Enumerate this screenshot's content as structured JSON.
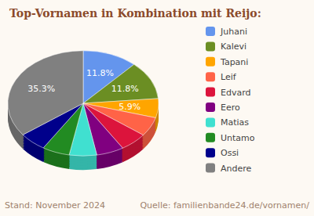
{
  "chart_data": {
    "type": "pie",
    "title": "Top-Vornamen in Kombination mit Reijo:",
    "categories": [
      "Juhani",
      "Kalevi",
      "Tapani",
      "Leif",
      "Edvard",
      "Eero",
      "Matias",
      "Untamo",
      "Ossi",
      "Andere"
    ],
    "values": [
      11.8,
      11.8,
      5.9,
      5.9,
      5.9,
      5.9,
      5.9,
      5.9,
      5.9,
      35.3
    ],
    "value_labels": [
      "11.8%",
      "11.8%",
      "5.9%",
      null,
      null,
      null,
      null,
      null,
      null,
      "35.3%"
    ],
    "data_labels": true,
    "colors": [
      "#6495ed",
      "#6b8e23",
      "#ffa500",
      "#ff6347",
      "#dc143c",
      "#800080",
      "#40e0d0",
      "#228b22",
      "#00008b",
      "#808080"
    ],
    "legend": "right",
    "annotations": [
      "Stand: November 2024",
      "Quelle: familienbande24.de/vornamen/"
    ]
  }
}
